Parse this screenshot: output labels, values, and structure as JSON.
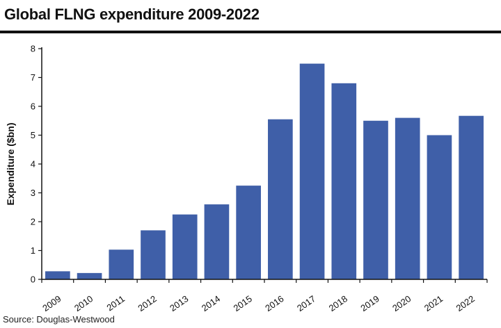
{
  "title": "Global FLNG expenditure 2009-2022",
  "source": "Source: Douglas-Westwood",
  "colors": {
    "bar": "#3f5fa8",
    "axis": "#111111"
  },
  "chart_data": {
    "type": "bar",
    "title": "Global FLNG expenditure 2009-2022",
    "xlabel": "",
    "ylabel": "Expenditure ($bn)",
    "ylim": [
      0,
      8
    ],
    "yticks": [
      0,
      1,
      2,
      3,
      4,
      5,
      6,
      7,
      8
    ],
    "grid": false,
    "categories": [
      "2009",
      "2010",
      "2011",
      "2012",
      "2013",
      "2014",
      "2015",
      "2016",
      "2017",
      "2018",
      "2019",
      "2020",
      "2021",
      "2022"
    ],
    "values": [
      0.28,
      0.22,
      1.03,
      1.7,
      2.25,
      2.6,
      3.25,
      5.55,
      7.48,
      6.8,
      5.5,
      5.6,
      5.0,
      5.67
    ]
  }
}
